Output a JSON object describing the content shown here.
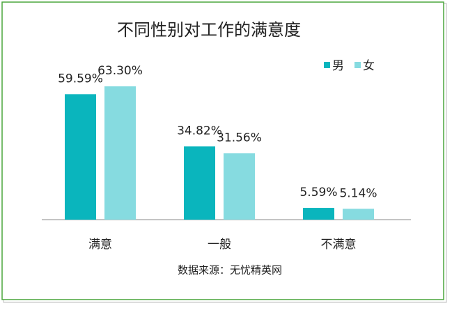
{
  "chart_data": {
    "type": "bar",
    "title": "不同性别对工作的满意度",
    "categories": [
      "满意",
      "一般",
      "不满意"
    ],
    "series": [
      {
        "name": "男",
        "color": "#0ab5bd",
        "values": [
          59.59,
          34.82,
          5.59
        ],
        "value_labels": [
          "59.59%",
          "34.82%",
          "5.59%"
        ]
      },
      {
        "name": "女",
        "color": "#86dbe0",
        "values": [
          63.3,
          31.56,
          5.14
        ],
        "value_labels": [
          "63.30%",
          "31.56%",
          "5.14%"
        ]
      }
    ],
    "legend": "top-right",
    "source": "数据来源：无忧精英网"
  }
}
